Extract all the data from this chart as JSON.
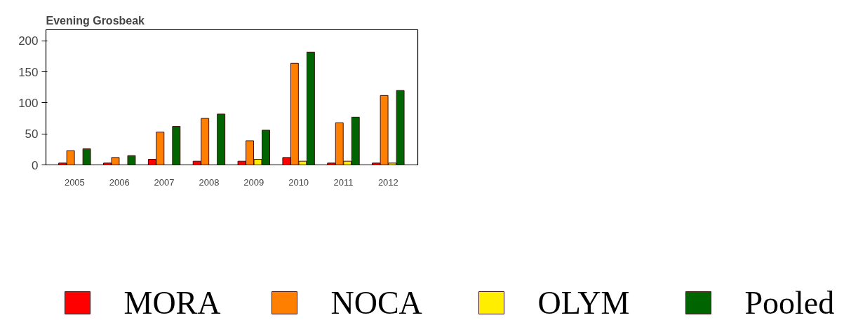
{
  "chart_data": {
    "type": "bar",
    "title": "Evening Grosbeak",
    "categories": [
      "2005",
      "2006",
      "2007",
      "2008",
      "2009",
      "2010",
      "2011",
      "2012"
    ],
    "series": [
      {
        "name": "MORA",
        "color": "#ff0000",
        "values": [
          3,
          3,
          9,
          6,
          6,
          12,
          3,
          3
        ]
      },
      {
        "name": "NOCA",
        "color": "#ff7f00",
        "values": [
          23,
          12,
          53,
          75,
          39,
          164,
          68,
          112
        ]
      },
      {
        "name": "OLYM",
        "color": "#ffee00",
        "values": [
          0,
          0,
          0,
          0,
          9,
          6,
          6,
          3
        ]
      },
      {
        "name": "Pooled",
        "color": "#006400",
        "values": [
          26,
          15,
          62,
          82,
          56,
          182,
          77,
          120
        ]
      }
    ],
    "ylim": [
      0,
      218
    ],
    "yticks": [
      0,
      50,
      100,
      150,
      200
    ],
    "grid": false,
    "legend": "bottom"
  }
}
